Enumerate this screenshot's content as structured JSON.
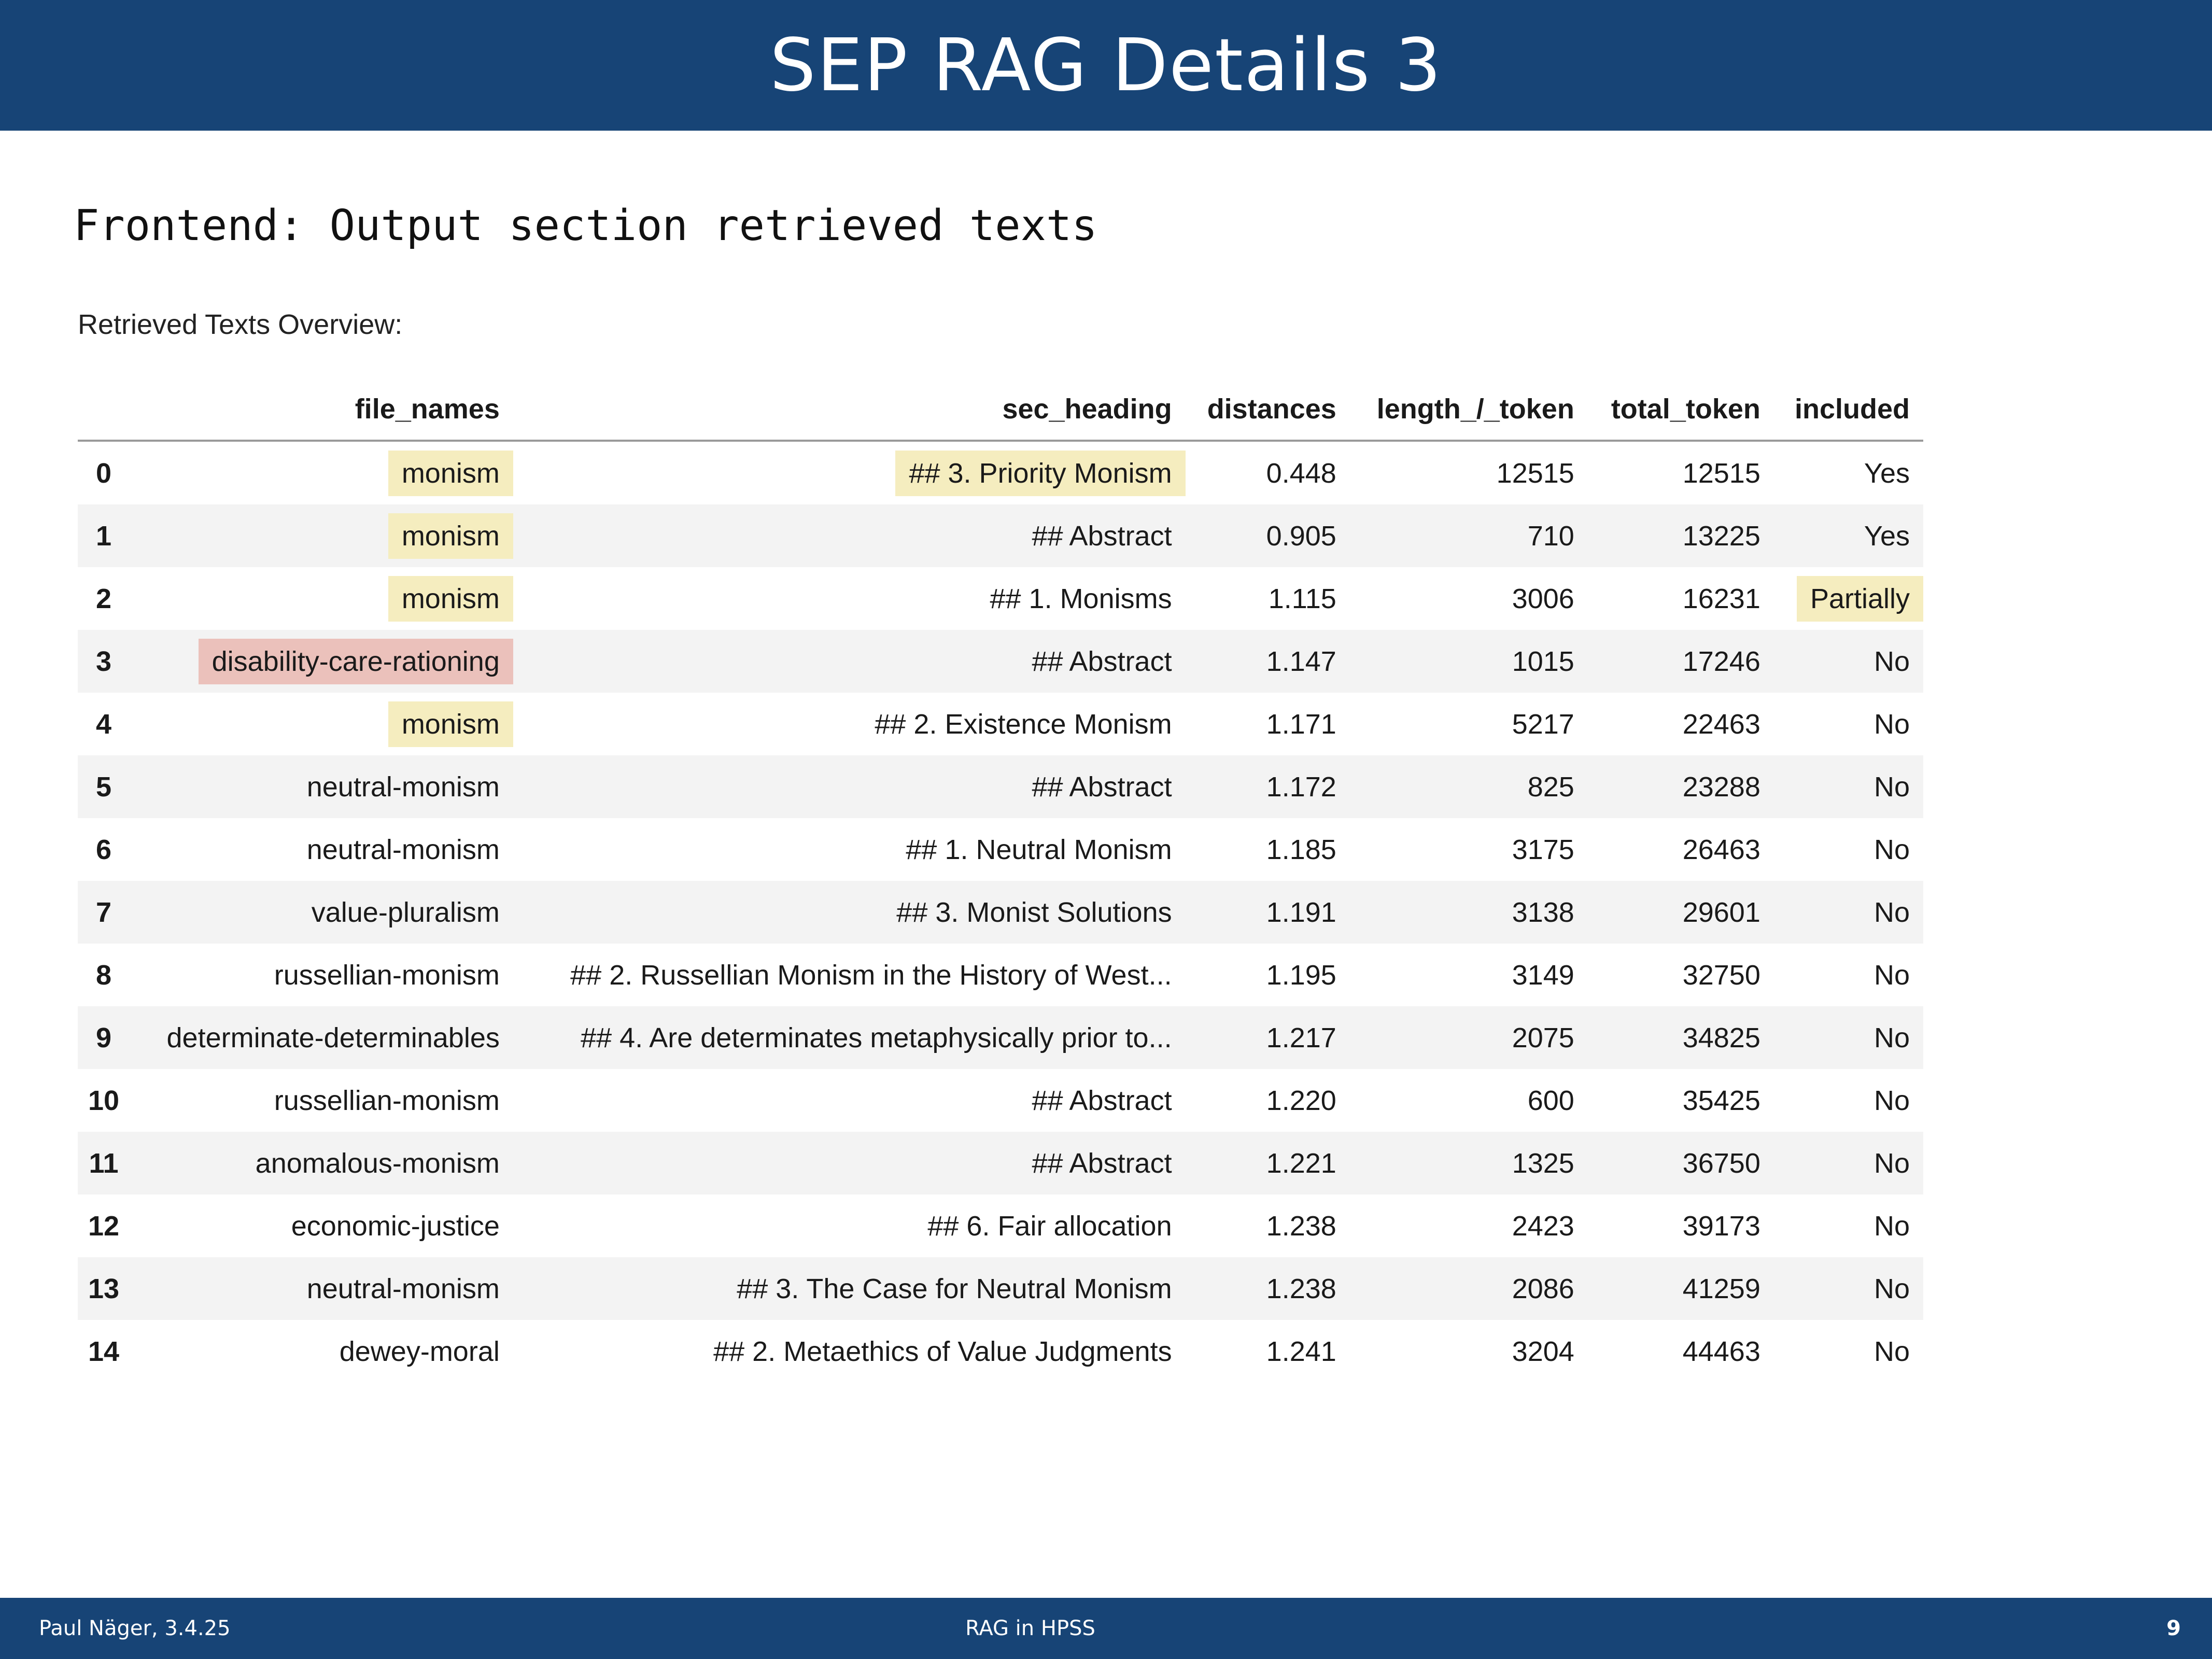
{
  "header": {
    "title": "SEP RAG Details 3"
  },
  "subtitle": "Frontend: Output section retrieved texts",
  "caption": "Retrieved Texts Overview:",
  "table": {
    "columns": [
      "file_names",
      "sec_heading",
      "distances",
      "length_/_token",
      "total_token",
      "included"
    ],
    "rows": [
      {
        "idx": "0",
        "file": "monism",
        "heading": "## 3. Priority Monism",
        "dist": "0.448",
        "len": "12515",
        "total": "12515",
        "incl": "Yes"
      },
      {
        "idx": "1",
        "file": "monism",
        "heading": "## Abstract",
        "dist": "0.905",
        "len": "710",
        "total": "13225",
        "incl": "Yes"
      },
      {
        "idx": "2",
        "file": "monism",
        "heading": "## 1. Monisms",
        "dist": "1.115",
        "len": "3006",
        "total": "16231",
        "incl": "Partially"
      },
      {
        "idx": "3",
        "file": "disability-care-rationing",
        "heading": "## Abstract",
        "dist": "1.147",
        "len": "1015",
        "total": "17246",
        "incl": "No"
      },
      {
        "idx": "4",
        "file": "monism",
        "heading": "## 2. Existence Monism",
        "dist": "1.171",
        "len": "5217",
        "total": "22463",
        "incl": "No"
      },
      {
        "idx": "5",
        "file": "neutral-monism",
        "heading": "## Abstract",
        "dist": "1.172",
        "len": "825",
        "total": "23288",
        "incl": "No"
      },
      {
        "idx": "6",
        "file": "neutral-monism",
        "heading": "## 1. Neutral Monism",
        "dist": "1.185",
        "len": "3175",
        "total": "26463",
        "incl": "No"
      },
      {
        "idx": "7",
        "file": "value-pluralism",
        "heading": "## 3. Monist Solutions",
        "dist": "1.191",
        "len": "3138",
        "total": "29601",
        "incl": "No"
      },
      {
        "idx": "8",
        "file": "russellian-monism",
        "heading": "## 2. Russellian Monism in the History of West...",
        "dist": "1.195",
        "len": "3149",
        "total": "32750",
        "incl": "No"
      },
      {
        "idx": "9",
        "file": "determinate-determinables",
        "heading": "## 4. Are determinates metaphysically prior to...",
        "dist": "1.217",
        "len": "2075",
        "total": "34825",
        "incl": "No"
      },
      {
        "idx": "10",
        "file": "russellian-monism",
        "heading": "## Abstract",
        "dist": "1.220",
        "len": "600",
        "total": "35425",
        "incl": "No"
      },
      {
        "idx": "11",
        "file": "anomalous-monism",
        "heading": "## Abstract",
        "dist": "1.221",
        "len": "1325",
        "total": "36750",
        "incl": "No"
      },
      {
        "idx": "12",
        "file": "economic-justice",
        "heading": "## 6. Fair allocation",
        "dist": "1.238",
        "len": "2423",
        "total": "39173",
        "incl": "No"
      },
      {
        "idx": "13",
        "file": "neutral-monism",
        "heading": "## 3. The Case for Neutral Monism",
        "dist": "1.238",
        "len": "2086",
        "total": "41259",
        "incl": "No"
      },
      {
        "idx": "14",
        "file": "dewey-moral",
        "heading": "## 2. Metaethics of Value Judgments",
        "dist": "1.241",
        "len": "3204",
        "total": "44463",
        "incl": "No"
      }
    ]
  },
  "colors": {
    "bar": "#174476",
    "highlight_yellow": "#f5edbf",
    "highlight_red": "#ebc1bb"
  },
  "footer": {
    "author_date": "Paul Näger, 3.4.25",
    "center": "RAG in HPSS",
    "page": "9"
  }
}
